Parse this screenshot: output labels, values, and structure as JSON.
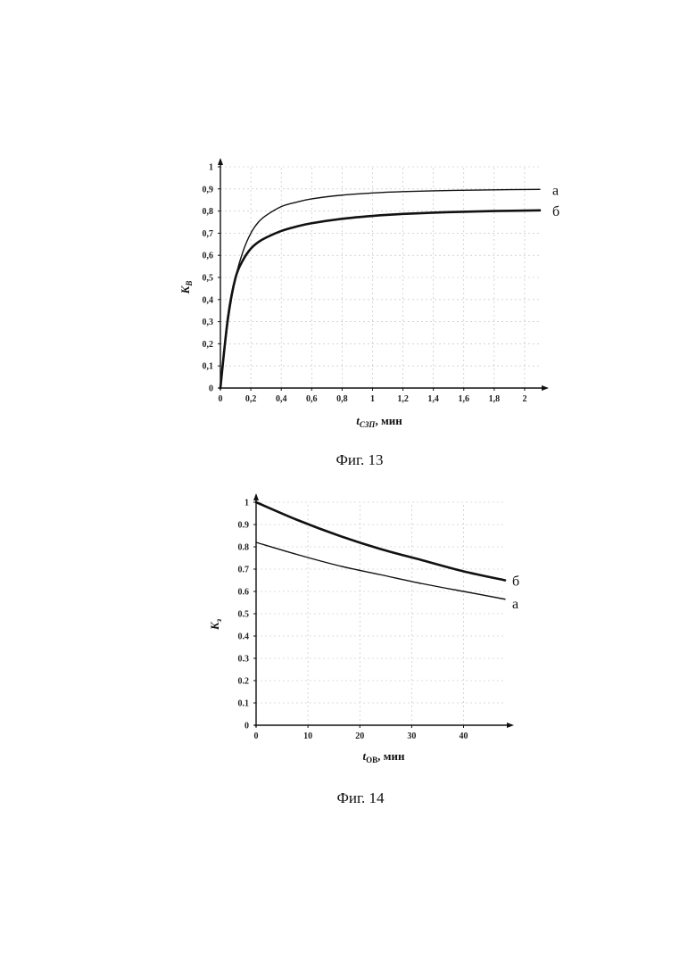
{
  "figures": [
    {
      "caption": "Фиг. 13",
      "chart_data": {
        "type": "line",
        "xlabel": "t",
        "xlabel_sub": "СЗП",
        "xlabel_unit": ", мин",
        "ylabel": "K",
        "ylabel_sub": "В",
        "xlim": [
          0,
          2.1
        ],
        "ylim": [
          0,
          1
        ],
        "x_ticks": [
          "0",
          "0,2",
          "0,4",
          "0,6",
          "0,8",
          "1",
          "1,2",
          "1,4",
          "1,6",
          "1,8",
          "2"
        ],
        "x_tick_values": [
          0,
          0.2,
          0.4,
          0.6,
          0.8,
          1.0,
          1.2,
          1.4,
          1.6,
          1.8,
          2.0
        ],
        "y_ticks": [
          "0",
          "0,1",
          "0,2",
          "0,3",
          "0,4",
          "0,5",
          "0,6",
          "0,7",
          "0,8",
          "0,9",
          "1"
        ],
        "y_tick_values": [
          0,
          0.1,
          0.2,
          0.3,
          0.4,
          0.5,
          0.6,
          0.7,
          0.8,
          0.9,
          1.0
        ],
        "grid": true,
        "series": [
          {
            "name": "а",
            "bold": false,
            "x": [
              0,
              0.05,
              0.1,
              0.15,
              0.2,
              0.25,
              0.3,
              0.4,
              0.5,
              0.6,
              0.8,
              1.0,
              1.2,
              1.5,
              1.8,
              2.1
            ],
            "y": [
              0,
              0.3,
              0.5,
              0.62,
              0.7,
              0.75,
              0.78,
              0.82,
              0.84,
              0.855,
              0.872,
              0.882,
              0.888,
              0.893,
              0.896,
              0.898
            ]
          },
          {
            "name": "б",
            "bold": true,
            "x": [
              0,
              0.05,
              0.1,
              0.15,
              0.2,
              0.25,
              0.3,
              0.4,
              0.5,
              0.6,
              0.8,
              1.0,
              1.2,
              1.5,
              1.8,
              2.1
            ],
            "y": [
              0,
              0.32,
              0.5,
              0.58,
              0.63,
              0.66,
              0.68,
              0.71,
              0.73,
              0.745,
              0.765,
              0.778,
              0.787,
              0.795,
              0.8,
              0.803
            ]
          }
        ]
      }
    },
    {
      "caption": "Фиг. 14",
      "chart_data": {
        "type": "line",
        "xlabel": "t",
        "xlabel_sub": "ОВ",
        "xlabel_unit": ", мин",
        "ylabel": "K",
        "ylabel_sub": "з",
        "xlim": [
          0,
          48
        ],
        "ylim": [
          0,
          1
        ],
        "x_ticks": [
          "0",
          "10",
          "20",
          "30",
          "40"
        ],
        "x_tick_values": [
          0,
          10,
          20,
          30,
          40
        ],
        "y_ticks": [
          "0",
          "0.1",
          "0.2",
          "0.3",
          "0.4",
          "0.5",
          "0.6",
          "0.7",
          "0.8",
          "0.9",
          "1"
        ],
        "y_tick_values": [
          0,
          0.1,
          0.2,
          0.3,
          0.4,
          0.5,
          0.6,
          0.7,
          0.8,
          0.9,
          1.0
        ],
        "grid": true,
        "series": [
          {
            "name": "б",
            "bold": true,
            "x": [
              0,
              8,
              16,
              24,
              32,
              40,
              48
            ],
            "y": [
              1.0,
              0.92,
              0.85,
              0.79,
              0.74,
              0.69,
              0.65
            ]
          },
          {
            "name": "а",
            "bold": false,
            "x": [
              0,
              8,
              16,
              24,
              32,
              40,
              48
            ],
            "y": [
              0.82,
              0.765,
              0.715,
              0.675,
              0.635,
              0.6,
              0.565
            ]
          }
        ]
      }
    }
  ]
}
